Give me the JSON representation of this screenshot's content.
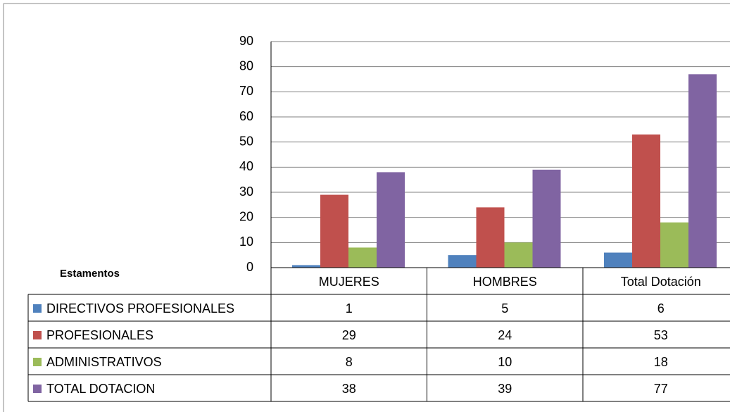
{
  "chart_data": {
    "type": "bar",
    "table_header": "Estamentos",
    "categories": [
      "MUJERES",
      "HOMBRES",
      "Total Dotación"
    ],
    "series": [
      {
        "name": "DIRECTIVOS PROFESIONALES",
        "color": "#4f81bd",
        "values": [
          1,
          5,
          6
        ]
      },
      {
        "name": "PROFESIONALES",
        "color": "#c0504d",
        "values": [
          29,
          24,
          53
        ]
      },
      {
        "name": "ADMINISTRATIVOS",
        "color": "#9bbb59",
        "values": [
          8,
          10,
          18
        ]
      },
      {
        "name": "TOTAL DOTACION",
        "color": "#8064a2",
        "values": [
          38,
          39,
          77
        ]
      }
    ],
    "ylim": [
      0,
      90
    ],
    "yticks": [
      0,
      10,
      20,
      30,
      40,
      50,
      60,
      70,
      80,
      90
    ],
    "grid": true
  }
}
